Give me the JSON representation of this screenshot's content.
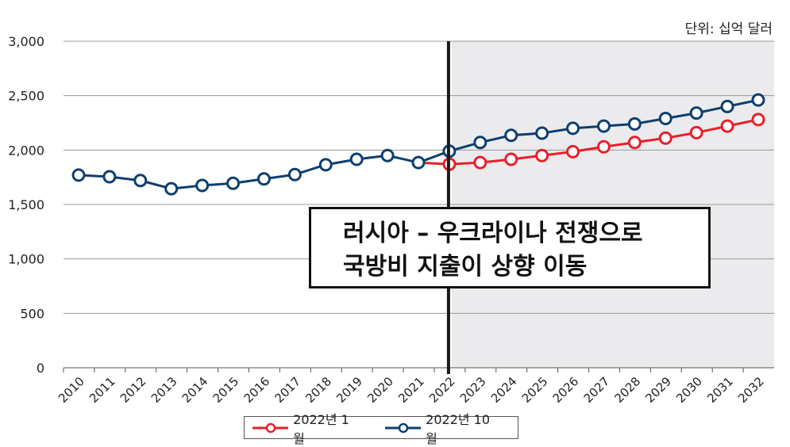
{
  "unit_label": "단위: 십억 달러",
  "annotation": {
    "line1": "러시아 – 우크라이나 전쟁으로",
    "line2": "국방비 지출이 상향 이동"
  },
  "chart_data": {
    "type": "line",
    "x": [
      "2010",
      "2011",
      "2012",
      "2013",
      "2014",
      "2015",
      "2016",
      "2017",
      "2018",
      "2019",
      "2020",
      "2021",
      "2022",
      "2023",
      "2024",
      "2025",
      "2026",
      "2027",
      "2028",
      "2029",
      "2030",
      "2031",
      "2032"
    ],
    "ylim": [
      0,
      3000
    ],
    "yticks": [
      "0",
      "500",
      "1,000",
      "1,500",
      "2,000",
      "2,500",
      "3,000"
    ],
    "grid": true,
    "legend_placement": "bottom",
    "shaded_from": "2022",
    "marker_line_at": "2022",
    "series": [
      {
        "name": "2022년 1월",
        "color": "#e8202a",
        "values": [
          null,
          null,
          null,
          null,
          null,
          null,
          null,
          null,
          null,
          null,
          null,
          1885,
          1870,
          1885,
          1915,
          1950,
          1985,
          2030,
          2070,
          2110,
          2160,
          2220,
          2280
        ]
      },
      {
        "name": "2022년 10월",
        "color": "#0d3f6e",
        "values": [
          1770,
          1755,
          1720,
          1645,
          1675,
          1695,
          1735,
          1775,
          1865,
          1915,
          1950,
          1885,
          1990,
          2070,
          2135,
          2155,
          2200,
          2220,
          2240,
          2290,
          2340,
          2400,
          2460
        ]
      }
    ]
  }
}
